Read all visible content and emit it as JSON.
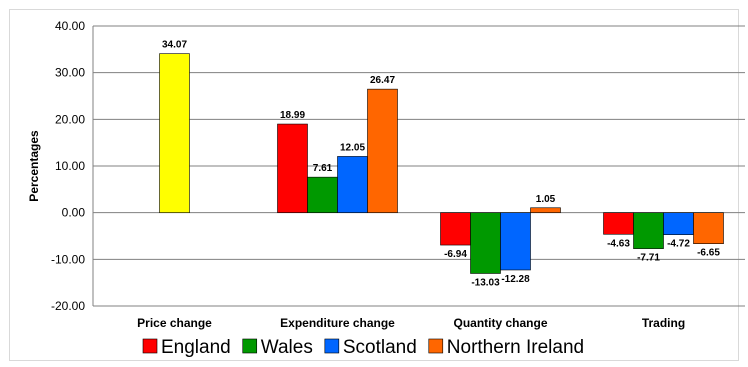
{
  "chart_data": {
    "type": "bar",
    "ylabel": "Percentages",
    "xlabel": "",
    "ylim": [
      -20,
      40
    ],
    "yticks": [
      40,
      30,
      20,
      10,
      0,
      -10,
      -20
    ],
    "ytick_labels": [
      "40.00",
      "30.00",
      "20.00",
      "10.00",
      "0.00",
      "-10.00",
      "-20.00"
    ],
    "grid": true,
    "legend_position": "bottom",
    "categories": [
      "Price change",
      "Expenditure change",
      "Quantity change",
      "Trading"
    ],
    "price_change": {
      "value": 34.07,
      "label": "34.07",
      "color": "#FFFF00"
    },
    "series": [
      {
        "name": "England",
        "color": "#FF0000",
        "values": [
          null,
          18.99,
          -6.94,
          -4.63
        ],
        "labels": [
          "",
          "18.99",
          "-6.94",
          "-4.63"
        ]
      },
      {
        "name": "Wales",
        "color": "#009900",
        "values": [
          null,
          7.61,
          -13.03,
          -7.71
        ],
        "labels": [
          "",
          "7.61",
          "-13.03",
          "-7.71"
        ]
      },
      {
        "name": "Scotland",
        "color": "#0066FF",
        "values": [
          null,
          12.05,
          -12.28,
          -4.72
        ],
        "labels": [
          "",
          "12.05",
          "-12.28",
          "-4.72"
        ]
      },
      {
        "name": "Northern Ireland",
        "color": "#FF6600",
        "values": [
          null,
          26.47,
          1.05,
          -6.65
        ],
        "labels": [
          "",
          "26.47",
          "1.05",
          "-6.65"
        ]
      }
    ]
  }
}
